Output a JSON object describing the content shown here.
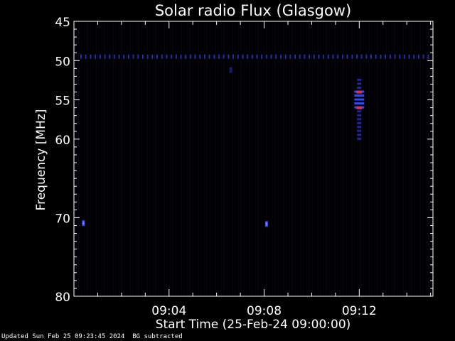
{
  "chart_data": {
    "type": "heatmap",
    "title": "Solar radio Flux (Glasgow)",
    "xlabel": "Start Time (25-Feb-24 09:00:00)",
    "ylabel": "Frequency [MHz]",
    "x_unit": "minutes after 09:00:00",
    "xlim": [
      0,
      15.1
    ],
    "ylim": [
      45,
      80
    ],
    "y_inverted": true,
    "x_ticks": [
      {
        "value": 4,
        "label": "09:04"
      },
      {
        "value": 8,
        "label": "09:08"
      },
      {
        "value": 12,
        "label": "09:12"
      }
    ],
    "y_ticks": [
      {
        "value": 45,
        "label": "45"
      },
      {
        "value": 50,
        "label": "50"
      },
      {
        "value": 55,
        "label": "55"
      },
      {
        "value": 60,
        "label": "60"
      },
      {
        "value": 70,
        "label": "70"
      },
      {
        "value": 80,
        "label": "80"
      }
    ],
    "colors": {
      "background": "#000000",
      "axes": "#ffffff",
      "low": "#1a1a6e",
      "mid": "#2f4bff",
      "high": "#d6325c"
    },
    "features": [
      {
        "name": "constant-band",
        "freq_mhz": 49.5,
        "t_start_min": 0.3,
        "t_end_min": 15.0,
        "level": "low"
      },
      {
        "name": "burst",
        "t_min": 12.0,
        "freq_start_mhz": 52.5,
        "freq_end_mhz": 60.0,
        "level": "high"
      },
      {
        "name": "spot-1",
        "t_min": 0.4,
        "freq_mhz": 70.7,
        "level": "mid"
      },
      {
        "name": "spot-2",
        "t_min": 8.1,
        "freq_mhz": 70.8,
        "level": "mid"
      },
      {
        "name": "spot-3",
        "t_min": 6.6,
        "freq_mhz": 51.2,
        "level": "low"
      }
    ]
  },
  "footer": {
    "updated": "Updated Sun Feb 25 09:23:45 2024",
    "note": "BG subtracted"
  }
}
